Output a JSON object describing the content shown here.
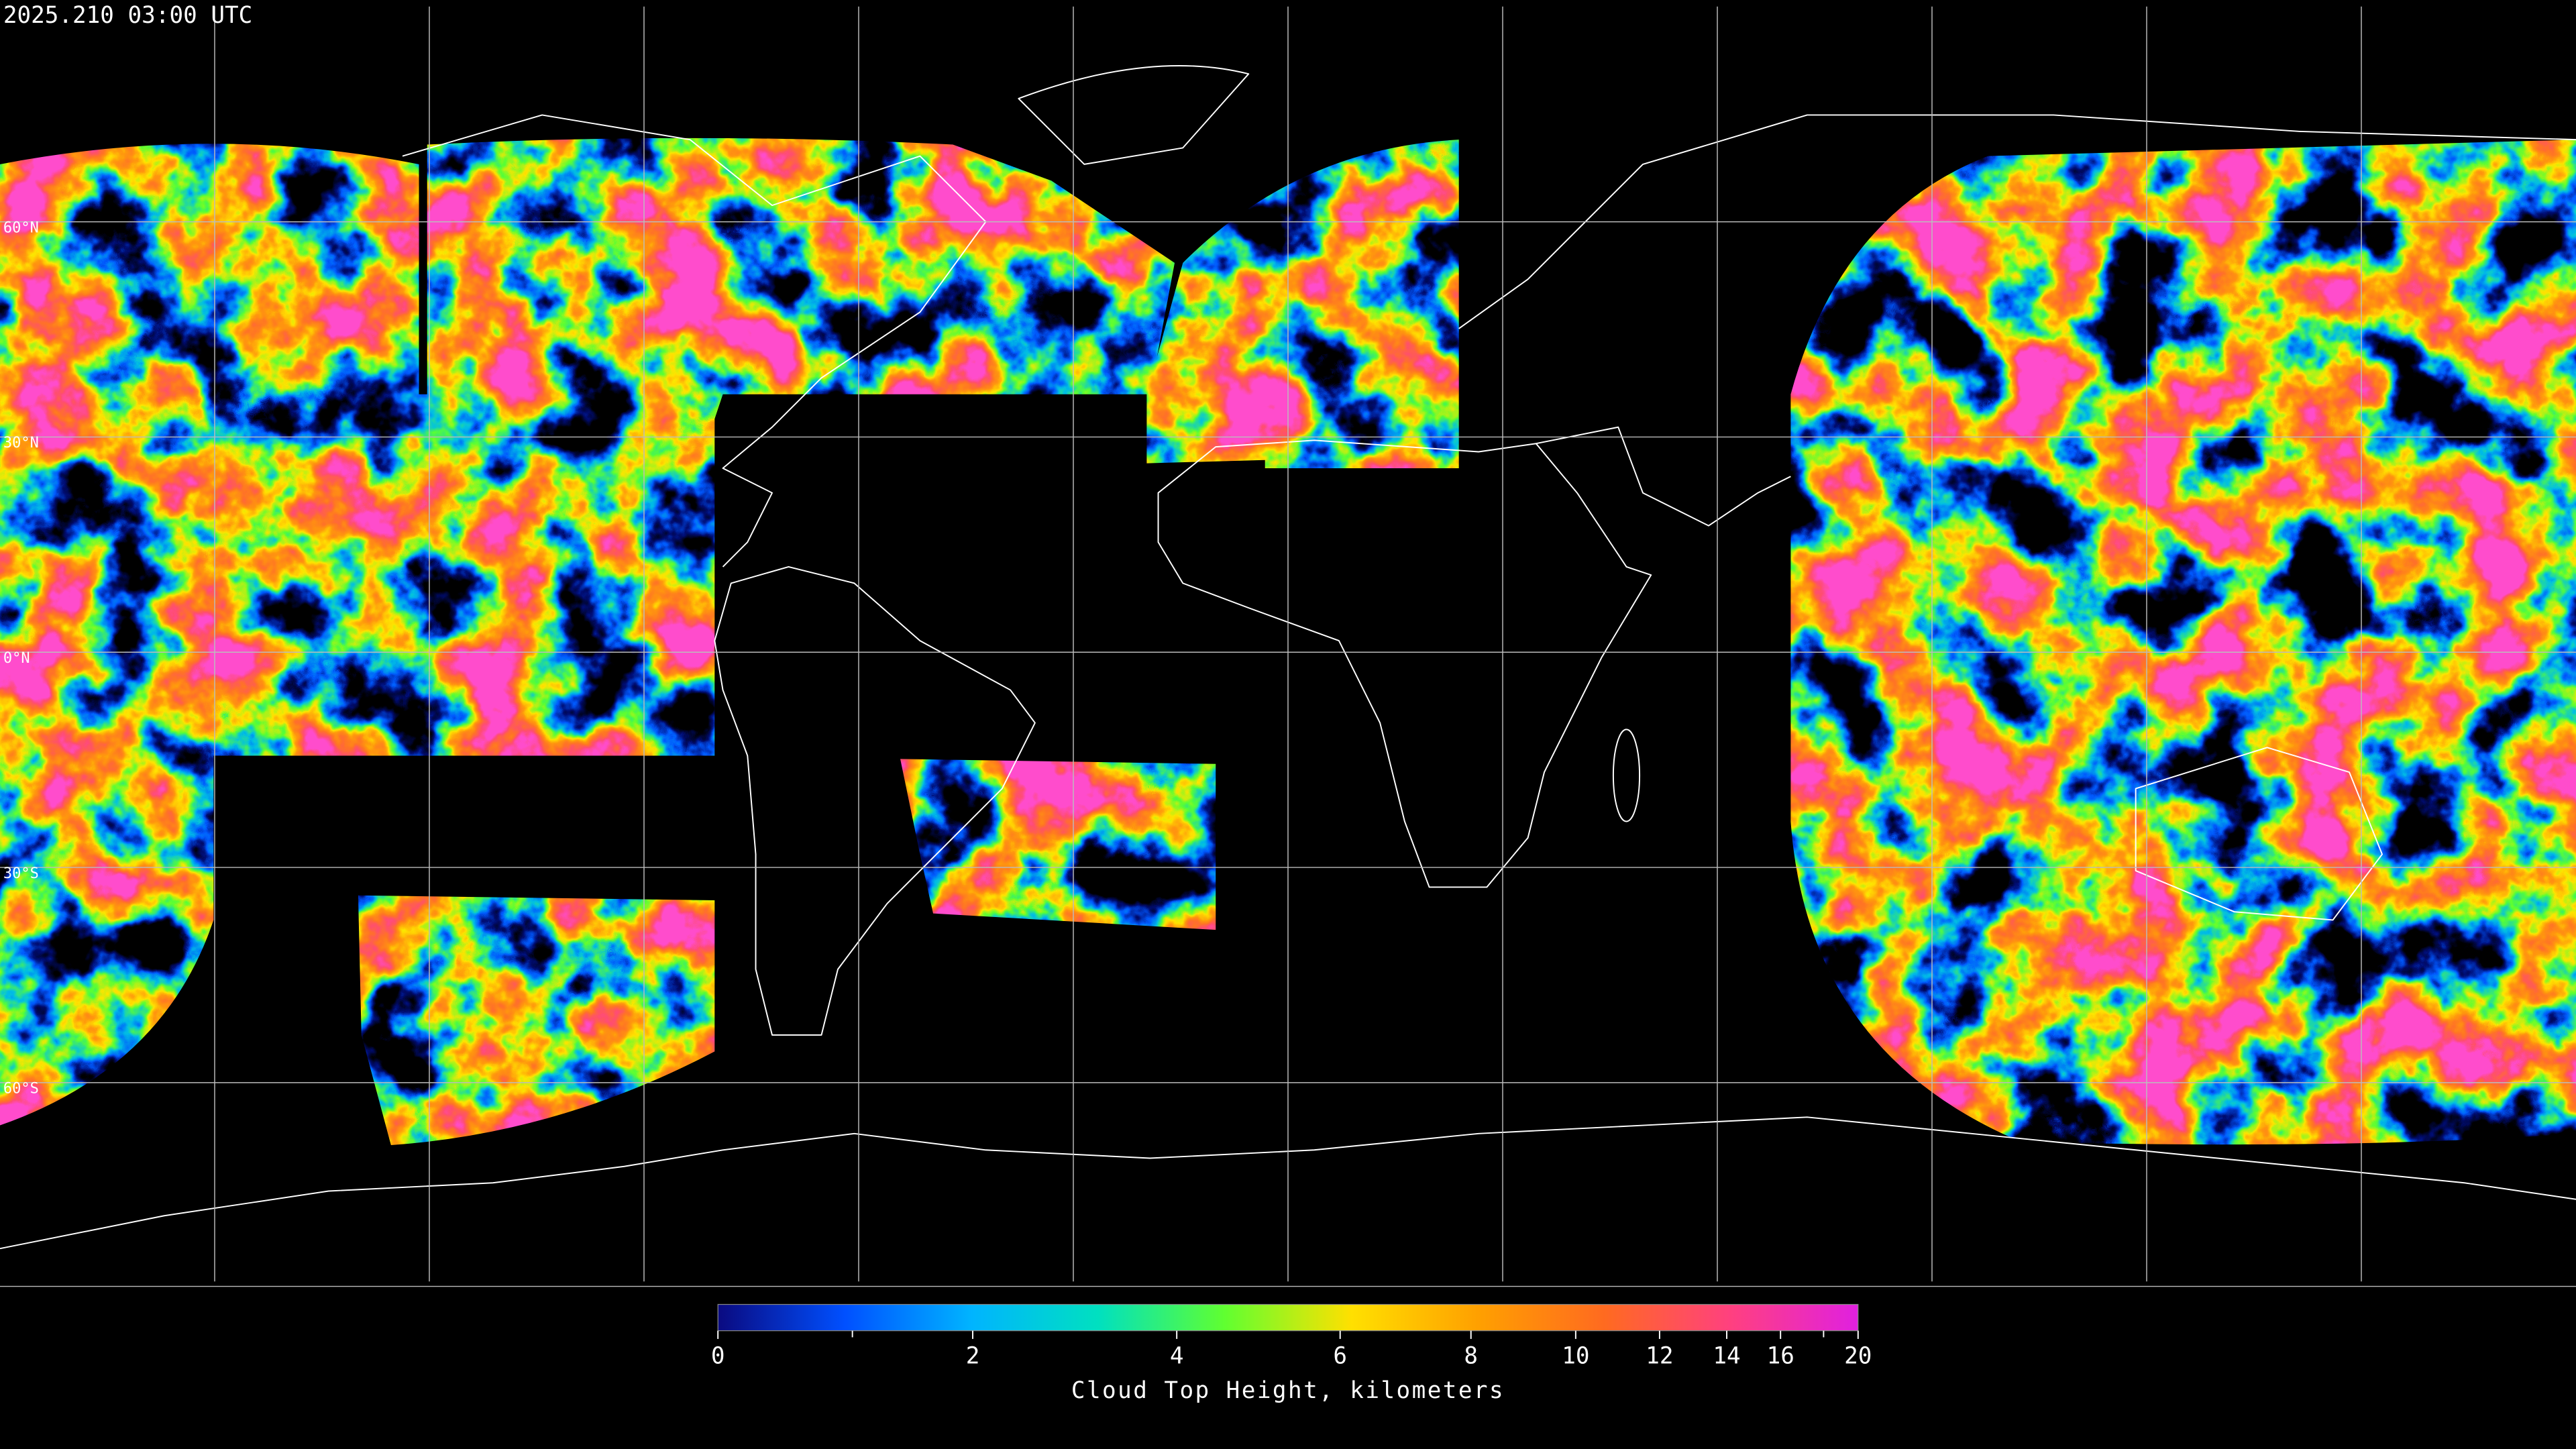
{
  "header": {
    "timestamp": "2025.210 03:00 UTC"
  },
  "map": {
    "lat_ticks": [
      {
        "value": 60,
        "label": "60°N"
      },
      {
        "value": 30,
        "label": "30°N"
      },
      {
        "value": 0,
        "label": "0°N"
      },
      {
        "value": -30,
        "label": "30°S"
      },
      {
        "value": -60,
        "label": "60°S"
      }
    ],
    "grid_longitudes": [
      -150,
      -120,
      -90,
      -60,
      -30,
      0,
      30,
      60,
      90,
      120,
      150
    ],
    "xlim": [
      -180,
      180
    ],
    "ylim": [
      -90,
      90
    ]
  },
  "colorbar": {
    "label": "Cloud Top Height, kilometers",
    "clim": [
      0,
      20
    ],
    "ticks": [
      0,
      2,
      4,
      6,
      8,
      10,
      12,
      14,
      16,
      20
    ],
    "minor_ticks": [
      1,
      18
    ],
    "colormap": [
      "#0a0a80",
      "#0050ff",
      "#00b4ff",
      "#00e0c0",
      "#60ff30",
      "#ffe000",
      "#ffa000",
      "#ff6a20",
      "#ff4080",
      "#e020e0"
    ]
  }
}
